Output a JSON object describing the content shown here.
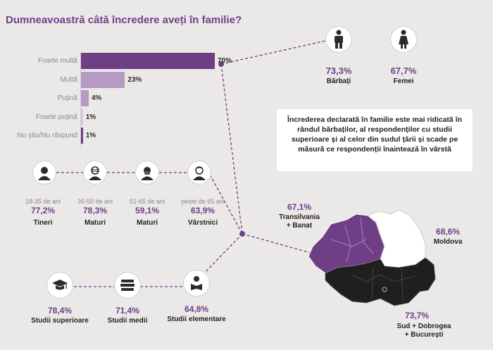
{
  "title": "Dumneavoastră câtă încredere aveți în familie?",
  "colors": {
    "accent": "#6f3f86",
    "bar_main": "#6f3f86",
    "bar_light": "#b79ac5",
    "bar_pale": "#d6c7de",
    "dark_region": "#1f1f1f"
  },
  "chart_data": {
    "type": "bar",
    "orientation": "horizontal",
    "categories": [
      "Foarte multă",
      "Multă",
      "Puțină",
      "Foarte puțină",
      "Nu știu/Nu răspund"
    ],
    "values": [
      70,
      23,
      4,
      1,
      1
    ],
    "value_labels": [
      "70%",
      "23%",
      "4%",
      "1%",
      "1%"
    ],
    "xlim": [
      0,
      100
    ]
  },
  "gender": [
    {
      "label": "Bărbați",
      "value": "73,3%",
      "icon": "man-icon"
    },
    {
      "label": "Femei",
      "value": "67,7%",
      "icon": "woman-icon"
    }
  ],
  "callout": "Încrederea declarată în familie este mai ridicată în rândul bărbaților, al respondenților cu studii superioare și al celor din sudul țării și scade pe măsură ce respondenții înaintează în vârstă",
  "age_groups": [
    {
      "range": "18-35 de ani",
      "value": "77,2%",
      "label": "Tineri",
      "icon": "young-person-icon"
    },
    {
      "range": "36-50 de ani",
      "value": "78,3%",
      "label": "Maturi",
      "icon": "glasses-person-icon"
    },
    {
      "range": "51-65 de ani",
      "value": "59,1%",
      "label": "Maturi",
      "icon": "bearded-person-icon"
    },
    {
      "range": "peste de 65 ani",
      "value": "63,9%",
      "label": "Vârstnici",
      "icon": "elder-person-icon"
    }
  ],
  "education": [
    {
      "label": "Studii superioare",
      "value": "78,4%",
      "icon": "graduation-cap-icon"
    },
    {
      "label": "Studii medii",
      "value": "71,4%",
      "icon": "books-icon"
    },
    {
      "label": "Studii elementare",
      "value": "64,8%",
      "icon": "reader-icon"
    }
  ],
  "regions": [
    {
      "label": "Transilvania + Banat",
      "line1": "Transilvania",
      "line2": "+ Banat",
      "value": "67,1%"
    },
    {
      "label": "Moldova",
      "value": "68,6%"
    },
    {
      "label": "Sud + Dobrogea + București",
      "line1": "Sud + Dobrogea",
      "line2": "+ București",
      "value": "73,7%"
    }
  ]
}
